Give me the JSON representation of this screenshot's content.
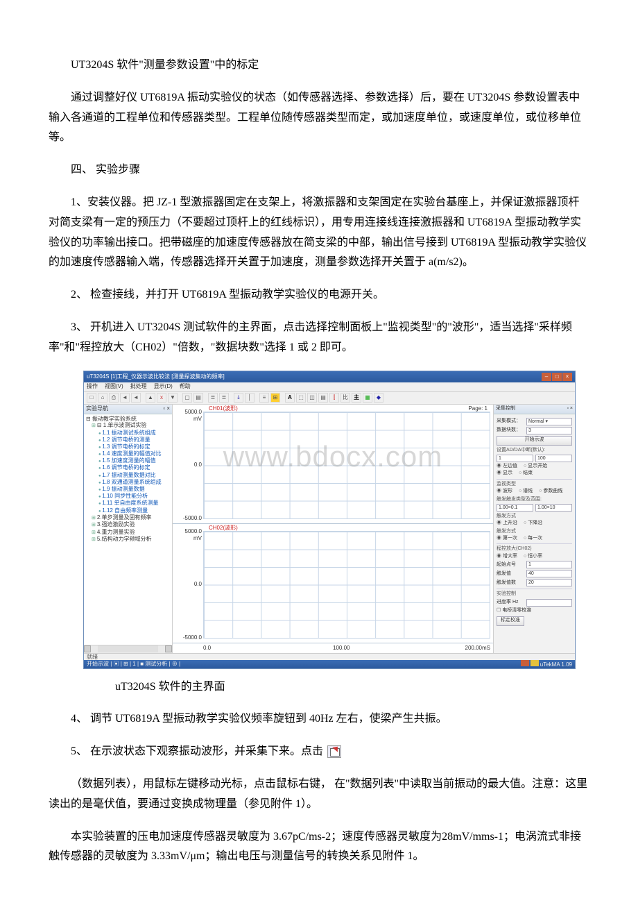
{
  "p_title": "UT3204S 软件\"测量参数设置\"中的标定",
  "p_intro": "通过调整好仪 UT6819A 振动实验仪的状态（如传感器选择、参数选择）后，要在 UT3204S 参数设置表中输入各通道的工程单位和传感器类型。工程单位随传感器类型而定，或加速度单位，或速度单位，或位移单位等。",
  "sec4": "四、  实验步骤",
  "p1": "1、安装仪器。把 JZ-1 型激振器固定在支架上，将激振器和支架固定在实验台基座上，并保证激振器顶杆对简支梁有一定的预压力（不要超过顶杆上的红线标识），用专用连接线连接激振器和 UT6819A 型振动教学实验仪的功率输出接口。把带磁座的加速度传感器放在简支梁的中部，输出信号接到 UT6819A 型振动教学实验仪的加速度传感器输入端，传感器选择开关置于加速度，测量参数选择开关置于 a(m/s2)。",
  "p2": "2、 检查接线，并打开 UT6819A 型振动教学实验仪的电源开关。",
  "p3": "3、  开机进入 UT3204S 测试软件的主界面，点击选择控制面板上\"监视类型\"的\"波形\"，适当选择\"采样频率\"和\"程控放大（CH02）\"倍数，\"数据块数\"选择 1 或 2 即可。",
  "caption": "uT3204S 软件的主界面",
  "p4": "4、 调节 UT6819A 型振动教学实验仪频率旋钮到 40Hz 左右，使梁产生共振。",
  "p5a": "5、 在示波状态下观察振动波形，并采集下来。点击 ",
  "p6": "（数据列表），用鼠标左键移动光标，点击鼠标右键，  在\"数据列表\"中读取当前振动的最大值。注意：这里读出的是毫伏值，要通过变换成物理量（参见附件 1）。",
  "p7": "本实验装置的压电加速度传感器灵敏度为 3.67pC/ms-2；速度传感器灵敏度为28mV/mms-1；电涡流式非接触传感器的灵敏度为 3.33mV/μm；输出电压与测量信号的转换关系见附件 1。",
  "ss": {
    "title": "uT3204S [1]工程_仪器示波比较法 [测量探波集动的频率]",
    "menus": [
      "操作",
      "视图(V)",
      "批处理",
      "显示(D)",
      "帮助"
    ],
    "toolbar_chars": [
      "□",
      "⌂",
      "⎙",
      "◄",
      "◄",
      "",
      "▲",
      "x",
      "▼",
      "",
      "▢",
      "▤",
      "",
      "≣",
      "≣",
      "",
      "ↆ",
      "│",
      "",
      "≡",
      "⊞",
      "",
      "A",
      "⬚",
      "◫",
      "▤",
      "⫿",
      "比",
      "主",
      "▦",
      "◆"
    ],
    "left_head": "实验导航",
    "left_pin": "▫ ×",
    "tree": {
      "root": "⊟ 振动教学实验系统",
      "groups": [
        {
          "label": "⊟ 1.单示波测试实验",
          "children": [
            "1.1 振动测试系统组成",
            "1.2 调节电桥的测量",
            "1.3 调节电桥的标定",
            "1.4 速度测量的幅值对比",
            "1.5 加速度测量的幅值",
            "1.6 调节电桥的标定",
            "1.7 振动测量数据对比",
            "1.8 双通道测量系统组成",
            "1.9 振动测量数据",
            "1.10 同步性能分析",
            "1.11 单自由度系统测量",
            "1.12 自由频率测量"
          ]
        },
        {
          "label": "2.单步测量及固有频率"
        },
        {
          "label": "3.强迫激励实验"
        },
        {
          "label": "4.重力测量实验"
        },
        {
          "label": "5.结构动力学频域分析"
        }
      ]
    },
    "chart1": {
      "title": "CH01(波形)",
      "page": "Page:  1",
      "ymax": "5000.0",
      "yunit": "mV",
      "ymid": "0.0",
      "ymin": "-5000.0"
    },
    "chart2": {
      "title": "CH02(波形)",
      "ymax": "5000.0",
      "yunit": "mV",
      "ymid": "0.0",
      "ymin": "-5000.0"
    },
    "xaxis": {
      "x0": "0.0",
      "x1": "100.00",
      "x2": "200.00mS"
    },
    "watermark": "www.bdocx.com",
    "right": {
      "head": "采集控制",
      "pin": "▫ ×",
      "rows": [
        {
          "label": "采集模式：",
          "value": "Normal",
          "type": "select"
        },
        {
          "label": "数据块数：",
          "value": "3",
          "type": "input"
        }
      ],
      "btn_acq": "开始示波",
      "subhd1": "设置AD/DA中断(默认):",
      "gain_left": "1",
      "gain_right": "100",
      "radios1": [
        "左边值",
        "显示开始"
      ],
      "radios2": [
        "显示",
        "结束"
      ],
      "subhd2": "监视类型",
      "radios3": [
        "波形",
        "谱线",
        "参数曲线"
      ],
      "subhd3": "触发触发类型及范围:",
      "val_a": "1.00×0.1",
      "val_b": "1.00×10",
      "subhd4": "触发方式",
      "radios4": [
        "上升沿",
        "下降沿"
      ],
      "subhd5": "触发方式",
      "radios5": [
        "第一次",
        "每一次"
      ],
      "subhd6": "程控放大(CH02)",
      "radios6": [
        "增大率",
        "恒小率"
      ],
      "labelA": "起始点号",
      "valA": "1",
      "labelB": "触发值",
      "valB": "40",
      "labelC": "触发值数",
      "valC": "20",
      "subhd7": "实验控制",
      "labelD": "进度率 Hz",
      "valD": "",
      "chk": "电桥清零校准",
      "btn_calib": "标定校准"
    },
    "status_left1": "就绪",
    "status_right1": "",
    "status_left2": "开始示波 | ▣ | ⊞ | 1 | ■ 测试分析 | ⊕ |",
    "status_right2_label": "uTekMA 1.09"
  }
}
